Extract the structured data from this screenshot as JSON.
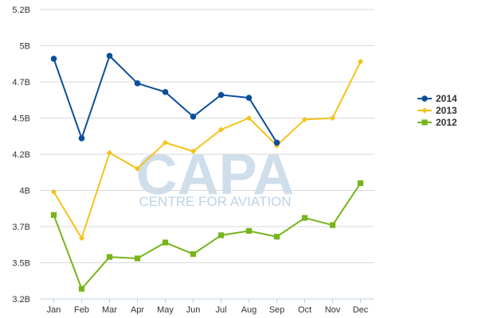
{
  "chart_data": {
    "type": "line",
    "title": "",
    "xlabel": "",
    "ylabel": "",
    "categories": [
      "Jan",
      "Feb",
      "Mar",
      "Apr",
      "May",
      "Jun",
      "Jul",
      "Aug",
      "Sep",
      "Oct",
      "Nov",
      "Dec"
    ],
    "ylim": [
      3.2,
      5.2
    ],
    "yticks": [
      3.2,
      3.45,
      3.7,
      3.95,
      4.2,
      4.45,
      4.7,
      4.95,
      5.2
    ],
    "ytick_labels": [
      "3.2B",
      "3.5B",
      "3.7B",
      "4B",
      "4.2B",
      "4.5B",
      "4.7B",
      "5B",
      "5.2B"
    ],
    "grid": true,
    "legend_position": "right",
    "series": [
      {
        "name": "2014",
        "color": "#0b4f9a",
        "marker": "circle",
        "values": [
          4.86,
          4.31,
          4.88,
          4.69,
          4.63,
          4.46,
          4.61,
          4.59,
          4.28,
          null,
          null,
          null
        ]
      },
      {
        "name": "2013",
        "color": "#f5c21c",
        "marker": "diamond",
        "values": [
          3.94,
          3.62,
          4.21,
          4.1,
          4.28,
          4.22,
          4.37,
          4.45,
          4.26,
          4.44,
          4.45,
          4.84
        ]
      },
      {
        "name": "2012",
        "color": "#76b51b",
        "marker": "square",
        "values": [
          3.78,
          3.27,
          3.49,
          3.48,
          3.59,
          3.51,
          3.64,
          3.67,
          3.63,
          3.76,
          3.71,
          4.0
        ]
      }
    ],
    "watermark": {
      "big": "CAPA",
      "small": "CENTRE FOR AVIATION"
    }
  }
}
